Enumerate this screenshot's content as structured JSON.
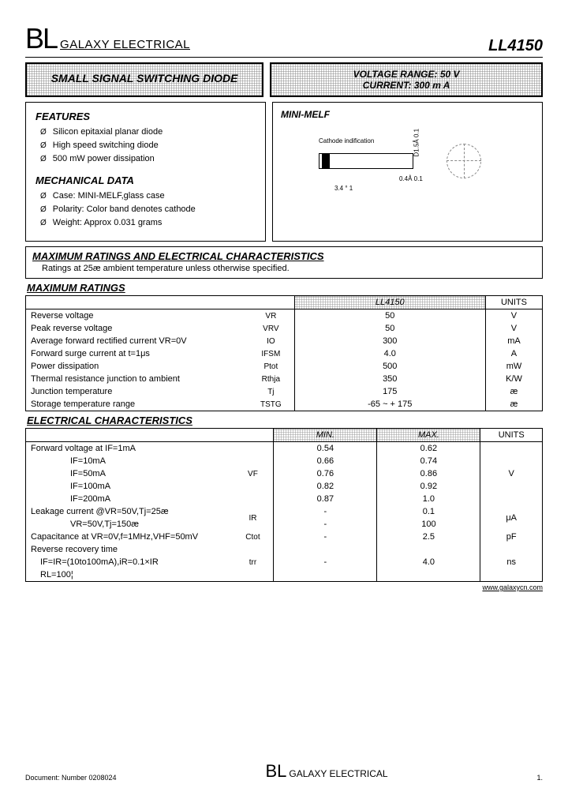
{
  "header": {
    "brand_prefix": "BL",
    "brand_name": "GALAXY ELECTRICAL",
    "part_number": "LL4150"
  },
  "title_box": "SMALL SIGNAL SWITCHING DIODE",
  "spec_box": {
    "line1": "VOLTAGE RANGE: 50 V",
    "line2": "CURRENT:  300 m A"
  },
  "features": {
    "heading": "FEATURES",
    "items": [
      "Silicon epitaxial planar diode",
      "High speed switching diode",
      "500 mW power dissipation"
    ]
  },
  "mechanical": {
    "heading": "MECHANICAL DATA",
    "items": [
      "Case:  MINI-MELF,glass case",
      "Polarity: Color band denotes cathode",
      "Weight: Approx 0.031 grams"
    ]
  },
  "package": {
    "title": "MINI-MELF",
    "cathode_label": "Cathode indification",
    "dim_length": "3.4 ° 1",
    "dim_band": "0.4Å 0.1",
    "dim_dia": "D1.5Å 0.1"
  },
  "ratings_section": {
    "title": "MAXIMUM RATINGS AND ELECTRICAL CHARACTERISTICS",
    "subtitle": "Ratings at 25æ ambient temperature unless otherwise specified."
  },
  "max_ratings": {
    "title": "MAXIMUM RATINGS",
    "col_part": "LL4150",
    "col_units": "UNITS",
    "rows": [
      {
        "param": "Reverse voltage",
        "sym": "VR",
        "val": "50",
        "unit": "V"
      },
      {
        "param": "Peak reverse voltage",
        "sym": "VRV",
        "val": "50",
        "unit": "V"
      },
      {
        "param": "Average forward rectified current   VR=0V",
        "sym": "IO",
        "val": "300",
        "unit": "mA"
      },
      {
        "param": "Forward surge current at   t=1μs",
        "sym": "IFSM",
        "val": "4.0",
        "unit": "A"
      },
      {
        "param": "Power dissipation",
        "sym": "Ptot",
        "val": "500",
        "unit": "mW"
      },
      {
        "param": "Thermal resistance junction to ambient",
        "sym": "Rthja",
        "val": "350",
        "unit": "K/W"
      },
      {
        "param": "Junction temperature",
        "sym": "Tj",
        "val": "175",
        "unit": "æ"
      },
      {
        "param": "Storage temperature range",
        "sym": "TSTG",
        "val": "-65 ~ + 175",
        "unit": "æ"
      }
    ]
  },
  "elec": {
    "title": "ELECTRICAL CHARACTERISTICS",
    "col_min": "MIN.",
    "col_max": "MAX.",
    "col_units": "UNITS",
    "fv": {
      "label": "Forward voltage at IF=1mA",
      "sym": "VF",
      "unit": "V",
      "rows": [
        {
          "cond": "",
          "min": "0.54",
          "max": "0.62"
        },
        {
          "cond": "IF=10mA",
          "min": "0.66",
          "max": "0.74"
        },
        {
          "cond": "IF=50mA",
          "min": "0.76",
          "max": "0.86"
        },
        {
          "cond": "IF=100mA",
          "min": "0.82",
          "max": "0.92"
        },
        {
          "cond": "IF=200mA",
          "min": "0.87",
          "max": "1.0"
        }
      ]
    },
    "leak": {
      "label": "Leakage current   @VR=50V,Tj=25æ",
      "label2": "VR=50V,Tj=150æ",
      "sym": "IR",
      "unit": "μA",
      "r1": {
        "min": "-",
        "max": "0.1"
      },
      "r2": {
        "min": "-",
        "max": "100"
      }
    },
    "cap": {
      "label": "Capacitance  at VR=0V,f=1MHz,VHF=50mV",
      "sym": "Ctot",
      "min": "-",
      "max": "2.5",
      "unit": "pF"
    },
    "trr": {
      "label": "Reverse recovery time",
      "cond1": "IF=IR=(10to100mA),iR=0.1×IR",
      "cond2": "RL=100¦",
      "sym": "trr",
      "min": "-",
      "max": "4.0",
      "unit": "ns"
    }
  },
  "footer": {
    "url": "www.galaxycn.com",
    "doc": "Document:  Number  0208024",
    "page": "1."
  }
}
